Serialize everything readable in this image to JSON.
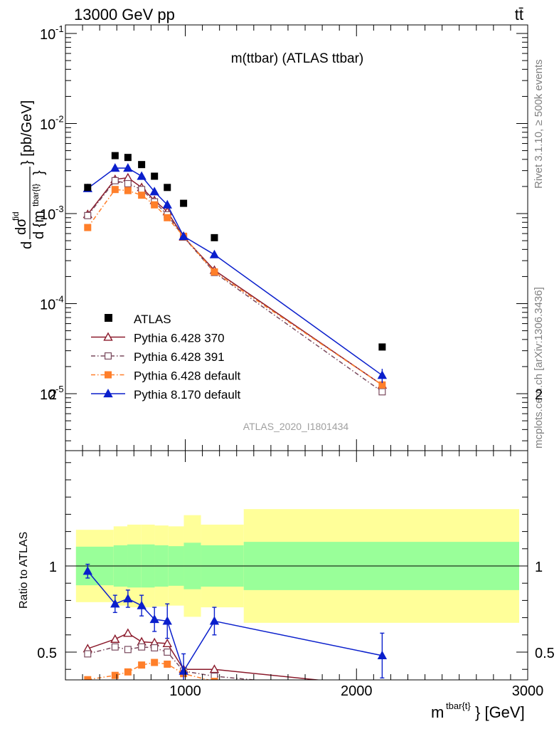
{
  "header": {
    "energy_label": "13000 GeV pp",
    "process_label": "tt̄"
  },
  "side": {
    "rivet_label": "Rivet 3.1.10, ≥ 500k events",
    "mcplots_label": "mcplots.cern.ch [arXiv:1306.3436]"
  },
  "chart_data": {
    "type": "line",
    "title": "m(ttbar) (ATLAS ttbar)",
    "watermark": "ATLAS_2020_I1801434",
    "xlabel": "m^tbar{t}} [GeV]",
    "ylabel": "dσ^fid / d {m^tbar{t}} [pb/GeV]",
    "ratio_ylabel": "Ratio to ATLAS",
    "xlim": [
      300,
      3000
    ],
    "ylim": [
      2.5e-06,
      0.12
    ],
    "yscale": "log",
    "ratio_ylim": [
      0.33,
      2.35
    ],
    "x_ticks": [
      1000,
      2000,
      3000
    ],
    "x_tick_labels": [
      "1000",
      "2000",
      "3000"
    ],
    "y_tick_labels": [
      "10^-5",
      "10^-4",
      "10^-3",
      "10^-2",
      "10^-1"
    ],
    "ratio_tick_labels": [
      "0.5",
      "1",
      "2"
    ],
    "x": [
      430,
      590,
      665,
      745,
      820,
      895,
      990,
      1170,
      2150
    ],
    "bin_edges": [
      320,
      540,
      620,
      700,
      780,
      860,
      950,
      1050,
      1300,
      3000
    ],
    "legend_position": "bottom-left",
    "data": {
      "name": "ATLAS",
      "values": [
        0.00195,
        0.0044,
        0.0042,
        0.0035,
        0.0026,
        0.00195,
        0.0013,
        0.00054,
        3.3e-05
      ],
      "ratio_band_inner": [
        0.112,
        0.12,
        0.125,
        0.125,
        0.12,
        0.115,
        0.135,
        0.12,
        0.14
      ],
      "ratio_band_outer": [
        0.21,
        0.23,
        0.24,
        0.24,
        0.235,
        0.23,
        0.295,
        0.24,
        0.33
      ]
    },
    "series": [
      {
        "name": "Pythia 6.428 370",
        "color": "#8b1a2b",
        "marker": "triangle-open",
        "dash": "solid",
        "values": [
          0.00098,
          0.0024,
          0.0025,
          0.00195,
          0.0014,
          0.00105,
          0.00055,
          0.000235,
          1.25e-05
        ],
        "ratio": [
          0.52,
          0.575,
          0.61,
          0.56,
          0.555,
          0.55,
          0.4,
          0.4,
          0.3
        ]
      },
      {
        "name": "Pythia 6.428 391",
        "color": "#7a4a5e",
        "marker": "square-open",
        "dash": "dashdot",
        "values": [
          0.00095,
          0.00232,
          0.00215,
          0.00185,
          0.00135,
          0.00097,
          0.00055,
          0.000222,
          1.05e-05
        ],
        "ratio": [
          0.49,
          0.53,
          0.515,
          0.53,
          0.525,
          0.5,
          0.39,
          0.36,
          0.27
        ]
      },
      {
        "name": "Pythia 6.428 default",
        "color": "#ff7f2a",
        "marker": "square-filled",
        "dash": "dashdot",
        "values": [
          0.0007,
          0.00185,
          0.0018,
          0.0016,
          0.00125,
          0.0009,
          0.00056,
          0.000225,
          1.25e-05
        ],
        "ratio": [
          0.34,
          0.365,
          0.385,
          0.425,
          0.44,
          0.43,
          0.375,
          0.33,
          0.27
        ]
      },
      {
        "name": "Pythia 8.170 default",
        "color": "#0a1fcc",
        "marker": "triangle-filled",
        "dash": "solid",
        "values": [
          0.0019,
          0.0032,
          0.0032,
          0.0026,
          0.00175,
          0.00125,
          0.00056,
          0.00035,
          1.6e-05
        ],
        "ratio": [
          0.97,
          0.78,
          0.81,
          0.77,
          0.69,
          0.68,
          0.39,
          0.68,
          0.48
        ],
        "ratio_err": [
          0.04,
          0.05,
          0.05,
          0.06,
          0.07,
          0.1,
          0.1,
          0.08,
          0.13
        ],
        "main_err": [
          0.04,
          0.03,
          0.03,
          0.03,
          0.04,
          0.05,
          0.08,
          0.08,
          0.18
        ]
      }
    ]
  }
}
